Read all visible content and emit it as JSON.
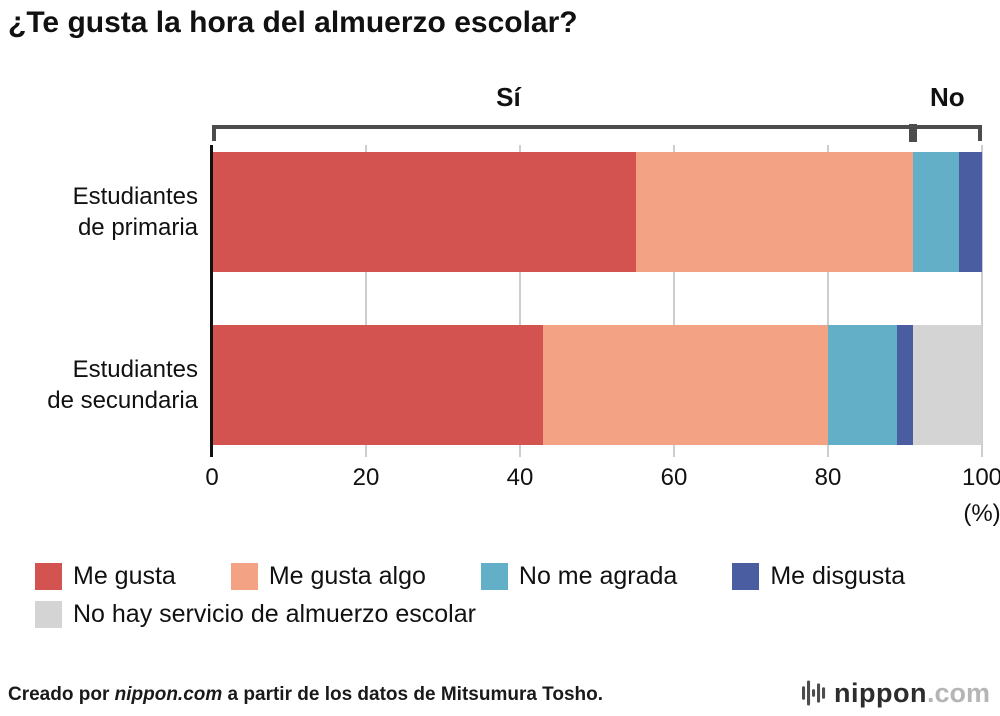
{
  "title": "¿Te gusta la hora del almuerzo escolar?",
  "chart_data": {
    "type": "bar",
    "orientation": "horizontal",
    "stacked": true,
    "unit": "%",
    "categories": [
      [
        "Estudiantes",
        "de primaria"
      ],
      [
        "Estudiantes",
        "de secundaria"
      ]
    ],
    "series": [
      {
        "name": "Me gusta",
        "color": "#d35351",
        "values": [
          55,
          43
        ]
      },
      {
        "name": "Me gusta algo",
        "color": "#f3a383",
        "values": [
          36,
          37
        ]
      },
      {
        "name": "No me agrada",
        "color": "#64afc8",
        "values": [
          6,
          9
        ]
      },
      {
        "name": "Me disgusta",
        "color": "#4a5da0",
        "values": [
          3,
          2
        ]
      },
      {
        "name": "No hay servicio de almuerzo escolar",
        "color": "#d4d4d4",
        "values": [
          0,
          9
        ]
      }
    ],
    "x_axis": {
      "ticks": [
        0,
        20,
        40,
        60,
        80,
        100
      ],
      "max": 100,
      "label": "(%)"
    },
    "brackets": {
      "si_label": "Sí",
      "no_label": "No",
      "divider_percent": 91,
      "si_label_percent": 38.5,
      "no_label_percent": 95.5
    },
    "legend_position": "bottom",
    "grid": true
  },
  "footer": {
    "credit_prefix": "Creado por ",
    "credit_site": "nippon.com",
    "credit_suffix": " a partir de los datos de Mitsumura Tosho.",
    "logo_text": "nippon",
    "logo_suffix": ".com"
  }
}
